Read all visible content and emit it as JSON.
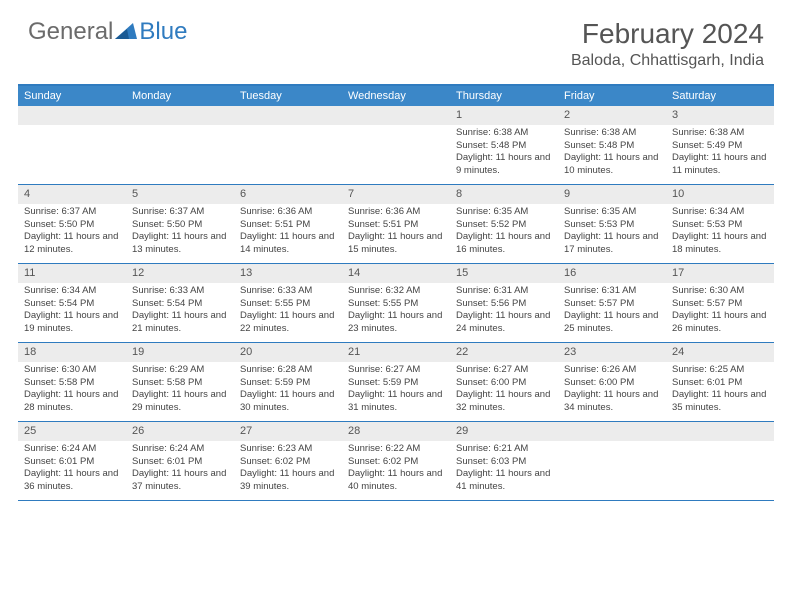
{
  "logo": {
    "text1": "General",
    "text2": "Blue"
  },
  "header": {
    "month_title": "February 2024",
    "location": "Baloda, Chhattisgarh, India"
  },
  "colors": {
    "header_bar": "#3b87c8",
    "border": "#2f7bbf",
    "day_number_bg": "#ececec",
    "text": "#444444",
    "logo_gray": "#6b6b6b",
    "logo_blue": "#2f7bbf"
  },
  "day_names": [
    "Sunday",
    "Monday",
    "Tuesday",
    "Wednesday",
    "Thursday",
    "Friday",
    "Saturday"
  ],
  "weeks": [
    [
      null,
      null,
      null,
      null,
      {
        "n": "1",
        "sunrise": "6:38 AM",
        "sunset": "5:48 PM",
        "daylight": "11 hours and 9 minutes."
      },
      {
        "n": "2",
        "sunrise": "6:38 AM",
        "sunset": "5:48 PM",
        "daylight": "11 hours and 10 minutes."
      },
      {
        "n": "3",
        "sunrise": "6:38 AM",
        "sunset": "5:49 PM",
        "daylight": "11 hours and 11 minutes."
      }
    ],
    [
      {
        "n": "4",
        "sunrise": "6:37 AM",
        "sunset": "5:50 PM",
        "daylight": "11 hours and 12 minutes."
      },
      {
        "n": "5",
        "sunrise": "6:37 AM",
        "sunset": "5:50 PM",
        "daylight": "11 hours and 13 minutes."
      },
      {
        "n": "6",
        "sunrise": "6:36 AM",
        "sunset": "5:51 PM",
        "daylight": "11 hours and 14 minutes."
      },
      {
        "n": "7",
        "sunrise": "6:36 AM",
        "sunset": "5:51 PM",
        "daylight": "11 hours and 15 minutes."
      },
      {
        "n": "8",
        "sunrise": "6:35 AM",
        "sunset": "5:52 PM",
        "daylight": "11 hours and 16 minutes."
      },
      {
        "n": "9",
        "sunrise": "6:35 AM",
        "sunset": "5:53 PM",
        "daylight": "11 hours and 17 minutes."
      },
      {
        "n": "10",
        "sunrise": "6:34 AM",
        "sunset": "5:53 PM",
        "daylight": "11 hours and 18 minutes."
      }
    ],
    [
      {
        "n": "11",
        "sunrise": "6:34 AM",
        "sunset": "5:54 PM",
        "daylight": "11 hours and 19 minutes."
      },
      {
        "n": "12",
        "sunrise": "6:33 AM",
        "sunset": "5:54 PM",
        "daylight": "11 hours and 21 minutes."
      },
      {
        "n": "13",
        "sunrise": "6:33 AM",
        "sunset": "5:55 PM",
        "daylight": "11 hours and 22 minutes."
      },
      {
        "n": "14",
        "sunrise": "6:32 AM",
        "sunset": "5:55 PM",
        "daylight": "11 hours and 23 minutes."
      },
      {
        "n": "15",
        "sunrise": "6:31 AM",
        "sunset": "5:56 PM",
        "daylight": "11 hours and 24 minutes."
      },
      {
        "n": "16",
        "sunrise": "6:31 AM",
        "sunset": "5:57 PM",
        "daylight": "11 hours and 25 minutes."
      },
      {
        "n": "17",
        "sunrise": "6:30 AM",
        "sunset": "5:57 PM",
        "daylight": "11 hours and 26 minutes."
      }
    ],
    [
      {
        "n": "18",
        "sunrise": "6:30 AM",
        "sunset": "5:58 PM",
        "daylight": "11 hours and 28 minutes."
      },
      {
        "n": "19",
        "sunrise": "6:29 AM",
        "sunset": "5:58 PM",
        "daylight": "11 hours and 29 minutes."
      },
      {
        "n": "20",
        "sunrise": "6:28 AM",
        "sunset": "5:59 PM",
        "daylight": "11 hours and 30 minutes."
      },
      {
        "n": "21",
        "sunrise": "6:27 AM",
        "sunset": "5:59 PM",
        "daylight": "11 hours and 31 minutes."
      },
      {
        "n": "22",
        "sunrise": "6:27 AM",
        "sunset": "6:00 PM",
        "daylight": "11 hours and 32 minutes."
      },
      {
        "n": "23",
        "sunrise": "6:26 AM",
        "sunset": "6:00 PM",
        "daylight": "11 hours and 34 minutes."
      },
      {
        "n": "24",
        "sunrise": "6:25 AM",
        "sunset": "6:01 PM",
        "daylight": "11 hours and 35 minutes."
      }
    ],
    [
      {
        "n": "25",
        "sunrise": "6:24 AM",
        "sunset": "6:01 PM",
        "daylight": "11 hours and 36 minutes."
      },
      {
        "n": "26",
        "sunrise": "6:24 AM",
        "sunset": "6:01 PM",
        "daylight": "11 hours and 37 minutes."
      },
      {
        "n": "27",
        "sunrise": "6:23 AM",
        "sunset": "6:02 PM",
        "daylight": "11 hours and 39 minutes."
      },
      {
        "n": "28",
        "sunrise": "6:22 AM",
        "sunset": "6:02 PM",
        "daylight": "11 hours and 40 minutes."
      },
      {
        "n": "29",
        "sunrise": "6:21 AM",
        "sunset": "6:03 PM",
        "daylight": "11 hours and 41 minutes."
      },
      null,
      null
    ]
  ],
  "labels": {
    "sunrise": "Sunrise:",
    "sunset": "Sunset:",
    "daylight": "Daylight:"
  }
}
